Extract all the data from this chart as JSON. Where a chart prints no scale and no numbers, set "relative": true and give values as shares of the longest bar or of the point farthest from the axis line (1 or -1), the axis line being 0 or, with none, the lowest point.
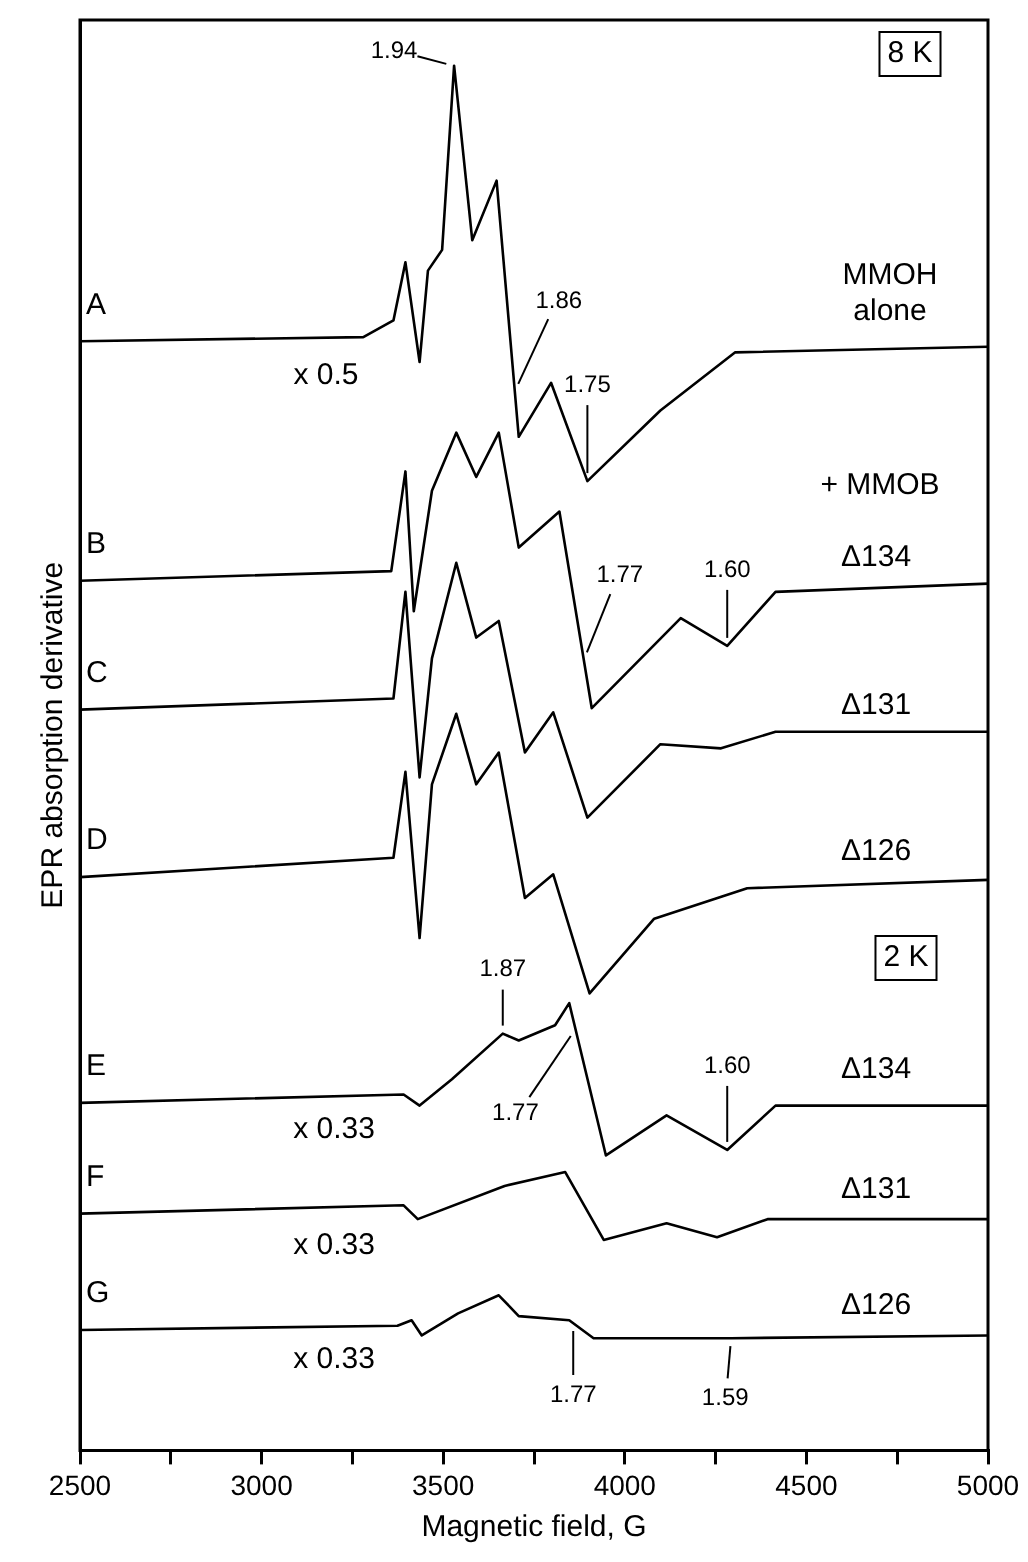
{
  "chart_data": {
    "type": "line",
    "relative": true,
    "xlabel": "Magnetic field, G",
    "ylabel": "EPR absorption derivative",
    "xlim": [
      2500,
      5000
    ],
    "xticks": [
      2500,
      {
        "value": 2750,
        "label": null
      },
      3000,
      {
        "value": 3250,
        "label": null
      },
      3500,
      {
        "value": 3750,
        "label": null
      },
      4000,
      {
        "value": 4250,
        "label": null
      },
      4500,
      {
        "value": 4750,
        "label": null
      },
      5000
    ],
    "legend": false,
    "grid": false,
    "marker": "none",
    "line_style": "solid",
    "series": [
      {
        "name": "A",
        "color": "#000000",
        "x": [
          2500,
          3280,
          3363,
          3396,
          3435,
          3458,
          3497,
          3530,
          3580,
          3647,
          3708,
          3797,
          3897,
          4098,
          4304,
          5000
        ],
        "values": [
          0.801,
          0.804,
          0.816,
          0.858,
          0.786,
          0.852,
          0.867,
          1.0,
          0.874,
          0.917,
          0.732,
          0.771,
          0.7,
          0.751,
          0.793,
          0.797
        ]
      },
      {
        "name": "B",
        "color": "#000000",
        "x": [
          2500,
          3357,
          3396,
          3419,
          3469,
          3536,
          3591,
          3653,
          3708,
          3820,
          3909,
          4154,
          4282,
          4415,
          5000
        ],
        "values": [
          0.628,
          0.635,
          0.707,
          0.606,
          0.693,
          0.735,
          0.703,
          0.735,
          0.652,
          0.678,
          0.536,
          0.601,
          0.581,
          0.62,
          0.626
        ]
      },
      {
        "name": "C",
        "color": "#000000",
        "x": [
          2500,
          3363,
          3396,
          3435,
          3469,
          3536,
          3591,
          3653,
          3725,
          3803,
          3897,
          4098,
          4265,
          4415,
          5000
        ],
        "values": [
          0.535,
          0.543,
          0.62,
          0.486,
          0.572,
          0.641,
          0.587,
          0.599,
          0.504,
          0.533,
          0.457,
          0.51,
          0.507,
          0.519,
          0.519
        ]
      },
      {
        "name": "D",
        "color": "#000000",
        "x": [
          2500,
          3363,
          3396,
          3435,
          3469,
          3536,
          3591,
          3653,
          3725,
          3803,
          3903,
          4081,
          4337,
          5000
        ],
        "values": [
          0.414,
          0.428,
          0.49,
          0.37,
          0.481,
          0.532,
          0.481,
          0.504,
          0.399,
          0.416,
          0.33,
          0.384,
          0.406,
          0.412
        ]
      },
      {
        "name": "E",
        "color": "#000000",
        "x": [
          2500,
          3391,
          3435,
          3524,
          3664,
          3708,
          3808,
          3847,
          3948,
          4115,
          4282,
          4415,
          5000
        ],
        "values": [
          0.251,
          0.257,
          0.249,
          0.268,
          0.301,
          0.296,
          0.307,
          0.323,
          0.213,
          0.242,
          0.217,
          0.249,
          0.249
        ]
      },
      {
        "name": "F",
        "color": "#000000",
        "x": [
          2500,
          3391,
          3430,
          3669,
          3836,
          3942,
          4115,
          4254,
          4393,
          5000
        ],
        "values": [
          0.171,
          0.177,
          0.167,
          0.191,
          0.201,
          0.152,
          0.164,
          0.154,
          0.167,
          0.167
        ]
      },
      {
        "name": "G",
        "color": "#000000",
        "x": [
          2500,
          3374,
          3413,
          3441,
          3541,
          3653,
          3708,
          3847,
          3914,
          4293,
          5000
        ],
        "values": [
          0.087,
          0.09,
          0.094,
          0.083,
          0.099,
          0.112,
          0.097,
          0.094,
          0.081,
          0.081,
          0.083
        ]
      }
    ],
    "annotations": [
      {
        "text": "1.94",
        "x": 3530,
        "y": 1.0
      },
      {
        "text": "1.86",
        "x": 3697,
        "y": 0.765
      },
      {
        "text": "1.75",
        "x": 3897,
        "y": 0.7
      },
      "x 0.5",
      "MMOH\nalone",
      "8 K",
      "+ MMOB",
      {
        "text": "1.77",
        "x": 3887,
        "y": 0.571
      },
      {
        "text": "1.60",
        "x": 4282,
        "y": 0.581
      },
      "Δ134",
      "Δ131",
      "Δ126",
      "2 K",
      {
        "text": "1.87",
        "x": 3664,
        "y": 0.301
      },
      {
        "text": "1.60",
        "x": 4282,
        "y": 0.217
      },
      "Δ134",
      {
        "text": "1.77",
        "x": 3864,
        "y": 0.304
      },
      "x 0.33",
      "Δ131",
      "x 0.33",
      "Δ126",
      "x 0.33",
      {
        "text": "1.77",
        "x": 3858,
        "y": 0.092
      },
      {
        "text": "1.59",
        "x": 4293,
        "y": 0.081
      }
    ]
  }
}
